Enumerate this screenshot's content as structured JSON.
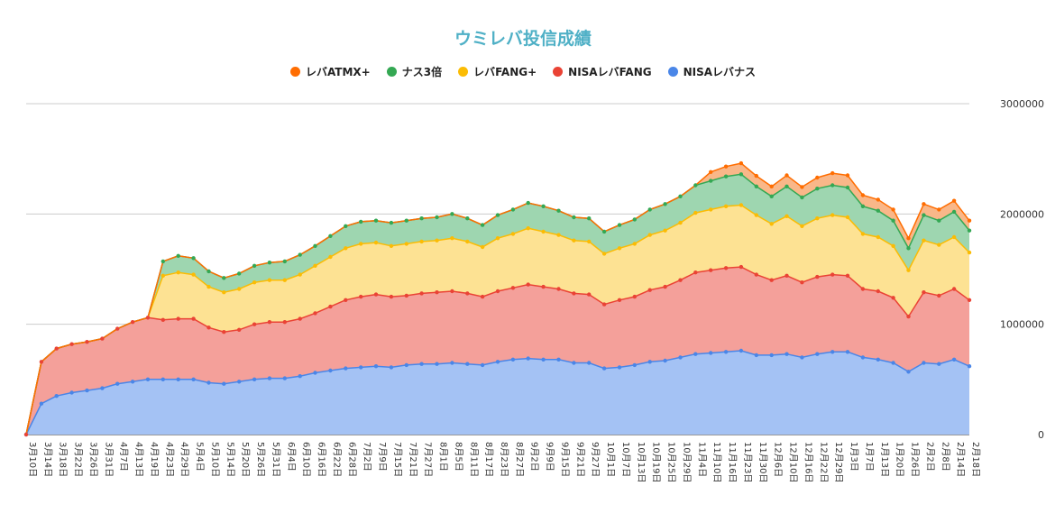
{
  "chart_data": {
    "type": "area",
    "stacked": true,
    "title": "ウミレバ投信成績",
    "legend_position": "top",
    "grid": true,
    "ylim": [
      0,
      3000000
    ],
    "yticks": [
      "0",
      "1000000",
      "2000000",
      "3000000"
    ],
    "xticks": [
      "3月10日",
      "3月14日",
      "3月18日",
      "3月22日",
      "3月26日",
      "3月31日",
      "4月7日",
      "4月13日",
      "4月19日",
      "4月23日",
      "4月29日",
      "5月4日",
      "5月10日",
      "5月14日",
      "5月20日",
      "5月26日",
      "5月31日",
      "6月4日",
      "6月10日",
      "6月16日",
      "6月22日",
      "6月28日",
      "7月2日",
      "7月9日",
      "7月15日",
      "7月21日",
      "7月27日",
      "8月1日",
      "8月5日",
      "8月11日",
      "8月17日",
      "8月23日",
      "8月27日",
      "9月2日",
      "9月9日",
      "9月15日",
      "9月21日",
      "9月27日",
      "10月1日",
      "10月7日",
      "10月13日",
      "10月19日",
      "10月25日",
      "10月29日",
      "11月4日",
      "11月10日",
      "11月16日",
      "11月23日",
      "11月30日",
      "12月6日",
      "12月10日",
      "12月16日",
      "12月22日",
      "12月29日",
      "1月3日",
      "1月7日",
      "1月13日",
      "1月20日",
      "1月26日",
      "2月2日",
      "2月8日",
      "2月14日",
      "2月18日"
    ],
    "series": [
      {
        "name": "NISAレバナス",
        "color": "#4a86e8",
        "fill": "#a4c2f4",
        "values": [
          0,
          280000,
          350000,
          380000,
          400000,
          420000,
          460000,
          480000,
          500000,
          500000,
          500000,
          500000,
          470000,
          460000,
          480000,
          500000,
          510000,
          510000,
          530000,
          560000,
          580000,
          600000,
          610000,
          620000,
          610000,
          630000,
          640000,
          640000,
          650000,
          640000,
          630000,
          660000,
          680000,
          690000,
          680000,
          680000,
          650000,
          650000,
          600000,
          610000,
          630000,
          660000,
          670000,
          700000,
          730000,
          740000,
          750000,
          760000,
          720000,
          720000,
          730000,
          700000,
          730000,
          750000,
          750000,
          700000,
          680000,
          650000,
          570000,
          650000,
          640000,
          680000,
          620000
        ]
      },
      {
        "name": "NISAレバFANG",
        "color": "#ea4335",
        "fill": "#f4a09a",
        "values": [
          0,
          380000,
          430000,
          440000,
          440000,
          450000,
          500000,
          540000,
          560000,
          540000,
          550000,
          550000,
          500000,
          470000,
          470000,
          500000,
          510000,
          510000,
          520000,
          540000,
          580000,
          620000,
          640000,
          650000,
          640000,
          630000,
          640000,
          650000,
          650000,
          640000,
          620000,
          640000,
          650000,
          670000,
          660000,
          640000,
          630000,
          620000,
          580000,
          610000,
          620000,
          650000,
          670000,
          700000,
          740000,
          750000,
          760000,
          760000,
          730000,
          680000,
          710000,
          680000,
          700000,
          700000,
          690000,
          620000,
          620000,
          590000,
          500000,
          640000,
          620000,
          640000,
          600000
        ]
      },
      {
        "name": "レバFANG+",
        "color": "#fbbc04",
        "fill": "#fde293",
        "values": [
          0,
          0,
          0,
          0,
          0,
          0,
          0,
          0,
          0,
          400000,
          420000,
          400000,
          370000,
          360000,
          370000,
          380000,
          380000,
          380000,
          400000,
          430000,
          450000,
          470000,
          480000,
          470000,
          460000,
          470000,
          470000,
          470000,
          480000,
          470000,
          450000,
          480000,
          490000,
          510000,
          500000,
          490000,
          480000,
          480000,
          460000,
          470000,
          480000,
          500000,
          510000,
          520000,
          540000,
          550000,
          560000,
          560000,
          540000,
          510000,
          540000,
          510000,
          530000,
          540000,
          530000,
          500000,
          490000,
          470000,
          420000,
          470000,
          460000,
          470000,
          430000
        ]
      },
      {
        "name": "ナス3倍",
        "color": "#34a853",
        "fill": "#9ed6b0",
        "values": [
          0,
          0,
          0,
          0,
          0,
          0,
          0,
          0,
          0,
          130000,
          150000,
          150000,
          140000,
          130000,
          140000,
          150000,
          160000,
          170000,
          180000,
          180000,
          190000,
          200000,
          200000,
          200000,
          210000,
          210000,
          210000,
          210000,
          220000,
          210000,
          200000,
          210000,
          220000,
          230000,
          230000,
          220000,
          210000,
          210000,
          200000,
          210000,
          220000,
          230000,
          240000,
          240000,
          250000,
          260000,
          270000,
          280000,
          260000,
          250000,
          270000,
          260000,
          270000,
          270000,
          270000,
          250000,
          240000,
          230000,
          200000,
          230000,
          220000,
          230000,
          200000
        ]
      },
      {
        "name": "レバATMX+",
        "color": "#ff6d01",
        "fill": "#f9b789",
        "values": [
          0,
          0,
          0,
          0,
          0,
          0,
          0,
          0,
          0,
          0,
          0,
          0,
          0,
          0,
          0,
          0,
          0,
          0,
          0,
          0,
          0,
          0,
          0,
          0,
          0,
          0,
          0,
          0,
          0,
          0,
          0,
          0,
          0,
          0,
          0,
          0,
          0,
          0,
          0,
          0,
          0,
          0,
          0,
          0,
          0,
          80000,
          90000,
          100000,
          95000,
          90000,
          100000,
          95000,
          100000,
          110000,
          110000,
          100000,
          100000,
          100000,
          90000,
          100000,
          100000,
          100000,
          90000
        ]
      }
    ]
  }
}
